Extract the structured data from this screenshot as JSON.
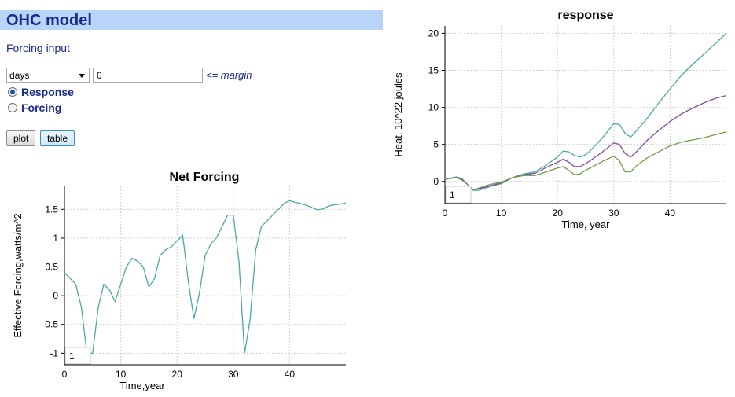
{
  "header": {
    "title": "OHC model"
  },
  "controls": {
    "forcing_input_label": "Forcing input",
    "units_selected": "days",
    "margin_value": "0",
    "margin_note": "<= margin",
    "radio_response": "Response",
    "radio_forcing": "Forcing",
    "selected_radio": "Response",
    "plot_button": "plot",
    "table_button": "table"
  },
  "colors": {
    "teal": "#4aa8a8",
    "purple": "#7e4aa8",
    "green": "#6f9c45",
    "grid": "#cfcfcf"
  },
  "chart_data": [
    {
      "type": "line",
      "title": "Net Forcing",
      "xlabel": "Time,year",
      "ylabel": "Effective Forcing,watts/m^2",
      "xlim": [
        0,
        50
      ],
      "ylim": [
        -1.2,
        1.9
      ],
      "xticks": [
        "0",
        "10",
        "20",
        "30",
        "40"
      ],
      "yticks": [
        "-1",
        "-0.5",
        "0",
        "0.5",
        "1",
        "1.5"
      ],
      "page_box": "1",
      "series": [
        {
          "color": "#4aa8a8",
          "x": [
            0,
            1,
            2,
            3,
            4,
            5,
            6,
            7,
            8,
            9,
            10,
            11,
            12,
            13,
            14,
            15,
            16,
            17,
            18,
            19,
            20,
            21,
            22,
            23,
            24,
            25,
            26,
            27,
            28,
            29,
            30,
            31,
            32,
            33,
            34,
            35,
            36,
            37,
            38,
            39,
            40,
            41,
            42,
            43,
            44,
            45,
            46,
            47,
            48,
            49,
            50
          ],
          "y": [
            0.4,
            0.3,
            0.2,
            -0.2,
            -1.0,
            -1.0,
            -0.2,
            0.2,
            0.1,
            -0.1,
            0.2,
            0.5,
            0.65,
            0.6,
            0.5,
            0.15,
            0.3,
            0.7,
            0.8,
            0.85,
            0.95,
            1.05,
            0.25,
            -0.4,
            0.05,
            0.7,
            0.9,
            1.0,
            1.2,
            1.4,
            1.4,
            0.6,
            -1.0,
            -0.4,
            0.8,
            1.2,
            1.3,
            1.4,
            1.5,
            1.6,
            1.65,
            1.62,
            1.6,
            1.57,
            1.53,
            1.49,
            1.51,
            1.56,
            1.58,
            1.59,
            1.61
          ]
        }
      ]
    },
    {
      "type": "line",
      "title": "response",
      "xlabel": "Time, year",
      "ylabel": "Heat, 10^22 joules",
      "xlim": [
        0,
        50
      ],
      "ylim": [
        -3,
        21
      ],
      "xticks": [
        "0",
        "10",
        "20",
        "30",
        "40"
      ],
      "yticks": [
        "0",
        "5",
        "10",
        "15",
        "20"
      ],
      "page_box": "1",
      "series": [
        {
          "color": "#4aa8a8",
          "x": [
            0,
            2,
            3,
            4,
            5,
            6,
            8,
            10,
            12,
            14,
            16,
            18,
            20,
            21,
            22,
            23,
            24,
            25,
            26,
            28,
            30,
            31,
            32,
            33,
            34,
            36,
            38,
            40,
            42,
            44,
            46,
            48,
            50
          ],
          "y": [
            0.3,
            0.6,
            0.4,
            -0.4,
            -1.2,
            -1.2,
            -0.7,
            -0.3,
            0.5,
            1.0,
            1.3,
            2.2,
            3.3,
            4.1,
            4.0,
            3.5,
            3.3,
            3.6,
            4.3,
            5.9,
            7.8,
            7.7,
            6.5,
            6.0,
            6.8,
            8.6,
            10.6,
            12.5,
            14.3,
            15.8,
            17.2,
            18.6,
            20.0
          ]
        },
        {
          "color": "#7e4aa8",
          "x": [
            0,
            2,
            3,
            4,
            5,
            6,
            8,
            10,
            12,
            14,
            16,
            18,
            20,
            21,
            22,
            23,
            24,
            25,
            26,
            28,
            30,
            31,
            32,
            33,
            34,
            36,
            38,
            40,
            42,
            44,
            46,
            48,
            50
          ],
          "y": [
            0.3,
            0.5,
            0.3,
            -0.4,
            -1.1,
            -1.0,
            -0.6,
            -0.2,
            0.5,
            0.9,
            1.1,
            1.9,
            2.6,
            3.0,
            2.6,
            2.0,
            2.0,
            2.4,
            2.9,
            4.0,
            5.2,
            5.0,
            3.8,
            3.3,
            4.0,
            5.6,
            6.9,
            8.1,
            9.1,
            9.9,
            10.6,
            11.2,
            11.6
          ]
        },
        {
          "color": "#6f9c45",
          "x": [
            0,
            2,
            3,
            4,
            5,
            6,
            8,
            10,
            12,
            14,
            16,
            18,
            20,
            21,
            22,
            23,
            24,
            25,
            26,
            28,
            30,
            31,
            32,
            33,
            34,
            36,
            38,
            40,
            42,
            44,
            46,
            48,
            50
          ],
          "y": [
            0.3,
            0.5,
            0.2,
            -0.4,
            -1.1,
            -0.9,
            -0.4,
            -0.1,
            0.5,
            0.8,
            0.8,
            1.3,
            1.8,
            2.0,
            1.5,
            0.9,
            1.0,
            1.5,
            1.9,
            2.7,
            3.4,
            2.8,
            1.3,
            1.3,
            2.1,
            3.2,
            4.0,
            4.8,
            5.3,
            5.6,
            5.9,
            6.3,
            6.7
          ]
        }
      ]
    }
  ]
}
